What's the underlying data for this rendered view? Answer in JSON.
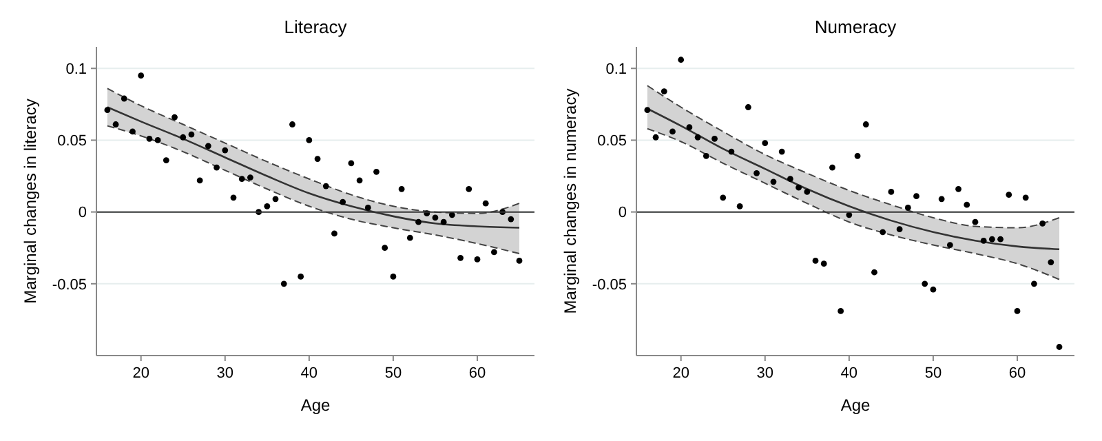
{
  "chart_data": [
    {
      "type": "scatter",
      "title": "Literacy",
      "xlabel": "Age",
      "ylabel": "Marginal changes in literacy",
      "xlim": [
        14.7,
        66.8
      ],
      "xticks": [
        20,
        30,
        40,
        50,
        60
      ],
      "ylim": [
        -0.1,
        0.115
      ],
      "yticks": [
        {
          "value": -0.05,
          "label": "-0.05"
        },
        {
          "value": 0,
          "label": "0"
        },
        {
          "value": 0.05,
          "label": "0.05"
        },
        {
          "value": 0.1,
          "label": "0.1"
        }
      ],
      "grid": "y",
      "marker": "circle",
      "ref_lines": [
        {
          "axis": "y",
          "value": 0,
          "color": "#333333",
          "line_style": "solid"
        }
      ],
      "series": [
        {
          "color": "#000000",
          "x": [
            16,
            17,
            18,
            19,
            20,
            21,
            22,
            23,
            24,
            25,
            26,
            27,
            28,
            29,
            30,
            31,
            32,
            33,
            34,
            35,
            36,
            37,
            38,
            39,
            40,
            41,
            42,
            43,
            44,
            45,
            46,
            47,
            48,
            49,
            50,
            51,
            52,
            53,
            54,
            55,
            56,
            57,
            58,
            59,
            60,
            61,
            62,
            63,
            64,
            65
          ],
          "values": [
            0.071,
            0.061,
            0.079,
            0.056,
            0.095,
            0.051,
            0.05,
            0.036,
            0.066,
            0.052,
            0.054,
            0.022,
            0.046,
            0.031,
            0.043,
            0.01,
            0.023,
            0.024,
            0.0,
            0.004,
            0.009,
            -0.05,
            0.061,
            -0.045,
            0.05,
            0.037,
            0.018,
            -0.015,
            0.007,
            0.034,
            0.022,
            0.003,
            0.028,
            -0.025,
            -0.045,
            0.016,
            -0.018,
            -0.007,
            -0.001,
            -0.004,
            -0.007,
            -0.002,
            -0.032,
            0.016,
            -0.033,
            0.006,
            -0.028,
            0.0,
            -0.005,
            -0.034
          ]
        },
        {
          "type": "line",
          "color": "#333333",
          "line_style": "solid",
          "marker": "none",
          "x": [
            16,
            20,
            25,
            30,
            35,
            40,
            45,
            50,
            55,
            60,
            65
          ],
          "values": [
            0.073,
            0.063,
            0.051,
            0.038,
            0.025,
            0.013,
            0.004,
            -0.003,
            -0.008,
            -0.01,
            -0.011
          ],
          "upper": [
            0.086,
            0.074,
            0.061,
            0.048,
            0.035,
            0.023,
            0.012,
            0.004,
            0.0,
            -0.001,
            0.006
          ],
          "lower": [
            0.06,
            0.053,
            0.042,
            0.029,
            0.016,
            0.004,
            -0.005,
            -0.011,
            -0.016,
            -0.022,
            -0.029
          ]
        },
        {
          "type": "line",
          "color": "#444444",
          "line_style": "dashed",
          "marker": "none",
          "x": [
            16,
            20,
            25,
            30,
            35,
            40,
            45,
            50,
            55,
            60,
            65
          ],
          "values": [
            0.086,
            0.074,
            0.061,
            0.048,
            0.035,
            0.023,
            0.012,
            0.004,
            0.0,
            -0.001,
            0.006
          ]
        },
        {
          "type": "line",
          "color": "#444444",
          "line_style": "dashed",
          "marker": "none",
          "x": [
            16,
            20,
            25,
            30,
            35,
            40,
            45,
            50,
            55,
            60,
            65
          ],
          "values": [
            0.06,
            0.053,
            0.042,
            0.029,
            0.016,
            0.004,
            -0.005,
            -0.011,
            -0.016,
            -0.022,
            -0.029
          ]
        }
      ]
    },
    {
      "type": "scatter",
      "title": "Numeracy",
      "xlabel": "Age",
      "ylabel": "Marginal changes in numeracy",
      "xlim": [
        14.7,
        66.8
      ],
      "xticks": [
        20,
        30,
        40,
        50,
        60
      ],
      "ylim": [
        -0.1,
        0.115
      ],
      "yticks": [
        {
          "value": -0.05,
          "label": "-0.05"
        },
        {
          "value": 0,
          "label": "0"
        },
        {
          "value": 0.05,
          "label": "0.05"
        },
        {
          "value": 0.1,
          "label": "0.1"
        }
      ],
      "grid": "y",
      "marker": "circle",
      "ref_lines": [
        {
          "axis": "y",
          "value": 0,
          "color": "#333333",
          "line_style": "solid"
        }
      ],
      "series": [
        {
          "color": "#000000",
          "x": [
            16,
            17,
            18,
            19,
            20,
            21,
            22,
            23,
            24,
            25,
            26,
            27,
            28,
            29,
            30,
            31,
            32,
            33,
            34,
            35,
            36,
            37,
            38,
            39,
            40,
            41,
            42,
            43,
            44,
            45,
            46,
            47,
            48,
            49,
            50,
            51,
            52,
            53,
            54,
            55,
            56,
            57,
            58,
            59,
            60,
            61,
            62,
            63,
            64,
            65
          ],
          "values": [
            0.071,
            0.052,
            0.084,
            0.056,
            0.106,
            0.059,
            0.052,
            0.039,
            0.051,
            0.01,
            0.042,
            0.004,
            0.073,
            0.027,
            0.048,
            0.021,
            0.042,
            0.023,
            0.017,
            0.014,
            -0.034,
            -0.036,
            0.031,
            -0.069,
            -0.002,
            0.039,
            0.061,
            -0.042,
            -0.014,
            0.014,
            -0.012,
            0.003,
            0.011,
            -0.05,
            -0.054,
            0.009,
            -0.023,
            0.016,
            0.005,
            -0.007,
            -0.02,
            -0.019,
            -0.019,
            0.012,
            -0.069,
            0.01,
            -0.05,
            -0.008,
            -0.035,
            -0.094
          ]
        },
        {
          "type": "line",
          "color": "#333333",
          "line_style": "solid",
          "marker": "none",
          "x": [
            16,
            20,
            25,
            30,
            35,
            40,
            45,
            50,
            55,
            60,
            65
          ],
          "values": [
            0.072,
            0.06,
            0.044,
            0.03,
            0.016,
            0.004,
            -0.006,
            -0.014,
            -0.02,
            -0.024,
            -0.026
          ],
          "upper": [
            0.088,
            0.073,
            0.056,
            0.04,
            0.027,
            0.015,
            0.005,
            -0.004,
            -0.01,
            -0.011,
            -0.004
          ],
          "lower": [
            0.058,
            0.049,
            0.034,
            0.02,
            0.006,
            -0.007,
            -0.016,
            -0.023,
            -0.029,
            -0.036,
            -0.047
          ]
        },
        {
          "type": "line",
          "color": "#444444",
          "line_style": "dashed",
          "marker": "none",
          "x": [
            16,
            20,
            25,
            30,
            35,
            40,
            45,
            50,
            55,
            60,
            65
          ],
          "values": [
            0.088,
            0.073,
            0.056,
            0.04,
            0.027,
            0.015,
            0.005,
            -0.004,
            -0.01,
            -0.011,
            -0.004
          ]
        },
        {
          "type": "line",
          "color": "#444444",
          "line_style": "dashed",
          "marker": "none",
          "x": [
            16,
            20,
            25,
            30,
            35,
            40,
            45,
            50,
            55,
            60,
            65
          ],
          "values": [
            0.058,
            0.049,
            0.034,
            0.02,
            0.006,
            -0.007,
            -0.016,
            -0.023,
            -0.029,
            -0.036,
            -0.047
          ]
        }
      ]
    }
  ]
}
